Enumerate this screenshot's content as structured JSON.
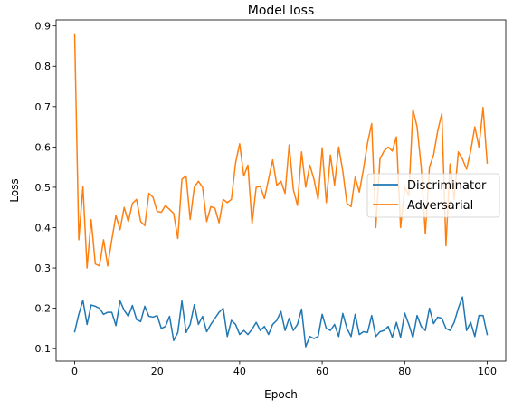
{
  "chart_data": {
    "type": "line",
    "title": "Model loss",
    "xlabel": "Epoch",
    "ylabel": "Loss",
    "xlim": [
      -4.5,
      104.5
    ],
    "ylim": [
      0.069,
      0.915
    ],
    "xticks": [
      0,
      20,
      40,
      60,
      80,
      100
    ],
    "yticks": [
      0.1,
      0.2,
      0.3,
      0.4,
      0.5,
      0.6,
      0.7,
      0.8,
      0.9
    ],
    "grid": false,
    "legend_position": "center-right",
    "x": [
      0,
      1,
      2,
      3,
      4,
      5,
      6,
      7,
      8,
      9,
      10,
      11,
      12,
      13,
      14,
      15,
      16,
      17,
      18,
      19,
      20,
      21,
      22,
      23,
      24,
      25,
      26,
      27,
      28,
      29,
      30,
      31,
      32,
      33,
      34,
      35,
      36,
      37,
      38,
      39,
      40,
      41,
      42,
      43,
      44,
      45,
      46,
      47,
      48,
      49,
      50,
      51,
      52,
      53,
      54,
      55,
      56,
      57,
      58,
      59,
      60,
      61,
      62,
      63,
      64,
      65,
      66,
      67,
      68,
      69,
      70,
      71,
      72,
      73,
      74,
      75,
      76,
      77,
      78,
      79,
      80,
      81,
      82,
      83,
      84,
      85,
      86,
      87,
      88,
      89,
      90,
      91,
      92,
      93,
      94,
      95,
      96,
      97,
      98,
      99,
      100
    ],
    "series": [
      {
        "name": "Discriminator",
        "color": "#1f77b4",
        "values": [
          0.142,
          0.185,
          0.22,
          0.16,
          0.208,
          0.205,
          0.2,
          0.185,
          0.19,
          0.19,
          0.157,
          0.218,
          0.195,
          0.18,
          0.207,
          0.172,
          0.167,
          0.205,
          0.18,
          0.178,
          0.182,
          0.15,
          0.155,
          0.18,
          0.12,
          0.14,
          0.218,
          0.14,
          0.16,
          0.209,
          0.16,
          0.18,
          0.142,
          0.16,
          0.175,
          0.19,
          0.2,
          0.13,
          0.17,
          0.16,
          0.135,
          0.145,
          0.135,
          0.148,
          0.165,
          0.145,
          0.155,
          0.135,
          0.16,
          0.17,
          0.192,
          0.145,
          0.175,
          0.145,
          0.16,
          0.198,
          0.105,
          0.13,
          0.125,
          0.13,
          0.185,
          0.15,
          0.145,
          0.16,
          0.13,
          0.187,
          0.15,
          0.13,
          0.185,
          0.135,
          0.142,
          0.14,
          0.182,
          0.13,
          0.142,
          0.145,
          0.155,
          0.128,
          0.165,
          0.128,
          0.188,
          0.16,
          0.127,
          0.182,
          0.155,
          0.145,
          0.2,
          0.162,
          0.178,
          0.175,
          0.15,
          0.145,
          0.165,
          0.2,
          0.228,
          0.145,
          0.165,
          0.13,
          0.182,
          0.182,
          0.135
        ]
      },
      {
        "name": "Adversarial",
        "color": "#ff7f0e",
        "values": [
          0.878,
          0.37,
          0.502,
          0.3,
          0.42,
          0.31,
          0.305,
          0.37,
          0.305,
          0.37,
          0.43,
          0.395,
          0.45,
          0.415,
          0.46,
          0.47,
          0.415,
          0.405,
          0.485,
          0.475,
          0.44,
          0.438,
          0.455,
          0.445,
          0.435,
          0.373,
          0.52,
          0.528,
          0.42,
          0.5,
          0.515,
          0.5,
          0.415,
          0.452,
          0.448,
          0.412,
          0.47,
          0.462,
          0.47,
          0.56,
          0.608,
          0.528,
          0.555,
          0.41,
          0.5,
          0.502,
          0.472,
          0.52,
          0.568,
          0.505,
          0.515,
          0.485,
          0.605,
          0.495,
          0.455,
          0.588,
          0.5,
          0.555,
          0.52,
          0.47,
          0.598,
          0.462,
          0.58,
          0.505,
          0.6,
          0.54,
          0.46,
          0.452,
          0.525,
          0.488,
          0.545,
          0.61,
          0.658,
          0.4,
          0.57,
          0.59,
          0.6,
          0.59,
          0.625,
          0.4,
          0.5,
          0.48,
          0.693,
          0.65,
          0.55,
          0.385,
          0.55,
          0.58,
          0.64,
          0.683,
          0.355,
          0.558,
          0.47,
          0.588,
          0.57,
          0.545,
          0.59,
          0.65,
          0.6,
          0.698,
          0.56
        ]
      }
    ]
  }
}
